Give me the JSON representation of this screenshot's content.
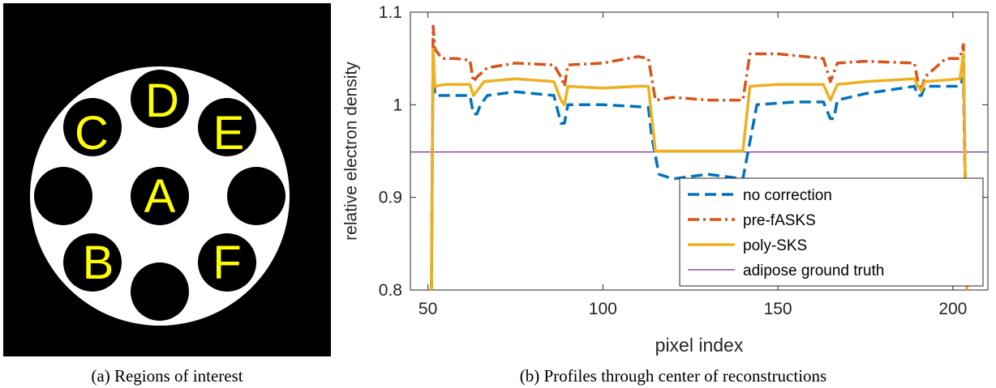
{
  "panel_a": {
    "caption": "(a) Regions of interest",
    "labels": {
      "A": "A",
      "B": "B",
      "C": "C",
      "D": "D",
      "E": "E",
      "F": "F"
    },
    "colors": {
      "background": "#000000",
      "phantom": "#ffffff",
      "insert": "#000000",
      "label": "#ffff00"
    }
  },
  "panel_b": {
    "caption": "(b) Profiles through center of reconstructions"
  },
  "chart_data": {
    "type": "line",
    "title": "",
    "xlabel": "pixel index",
    "ylabel": "relative electron density",
    "xlim": [
      45,
      210
    ],
    "ylim": [
      0.8,
      1.1
    ],
    "xticks": [
      50,
      100,
      150,
      200
    ],
    "yticks": [
      0.8,
      0.9,
      1,
      1.1
    ],
    "ytick_labels": [
      "0.8",
      "0.9",
      "1",
      "1.1"
    ],
    "grid": false,
    "legend_position": "bottom-right",
    "series": [
      {
        "name": "no correction",
        "color": "#0072BD",
        "style": "dashed",
        "points": [
          [
            51,
            0.8
          ],
          [
            51.5,
            1.05
          ],
          [
            52,
            1.01
          ],
          [
            60,
            1.01
          ],
          [
            62,
            1.01
          ],
          [
            63,
            0.99
          ],
          [
            64,
            0.99
          ],
          [
            65,
            1.0
          ],
          [
            67,
            1.01
          ],
          [
            75,
            1.014
          ],
          [
            86,
            1.01
          ],
          [
            88,
            0.98
          ],
          [
            89,
            0.98
          ],
          [
            90,
            1.0
          ],
          [
            100,
            1.0
          ],
          [
            110,
            0.998
          ],
          [
            113,
            0.997
          ],
          [
            114,
            0.965
          ],
          [
            116,
            0.925
          ],
          [
            120,
            0.92
          ],
          [
            130,
            0.925
          ],
          [
            140,
            0.92
          ],
          [
            142,
            0.96
          ],
          [
            144,
            1.0
          ],
          [
            155,
            1.003
          ],
          [
            163,
            1.003
          ],
          [
            165,
            0.985
          ],
          [
            166,
            0.985
          ],
          [
            167,
            1.005
          ],
          [
            175,
            1.012
          ],
          [
            189,
            1.02
          ],
          [
            190,
            1.01
          ],
          [
            191,
            1.01
          ],
          [
            192,
            1.02
          ],
          [
            202,
            1.02
          ],
          [
            203,
            1.03
          ],
          [
            204,
            0.8
          ]
        ]
      },
      {
        "name": "pre-fASKS",
        "color": "#D95319",
        "style": "dashdot",
        "points": [
          [
            51,
            0.8
          ],
          [
            51.5,
            1.085
          ],
          [
            52,
            1.06
          ],
          [
            54,
            1.05
          ],
          [
            58,
            1.05
          ],
          [
            62,
            1.048
          ],
          [
            63,
            1.025
          ],
          [
            64,
            1.03
          ],
          [
            67,
            1.04
          ],
          [
            75,
            1.045
          ],
          [
            86,
            1.043
          ],
          [
            88,
            1.03
          ],
          [
            89,
            1.02
          ],
          [
            90,
            1.043
          ],
          [
            100,
            1.045
          ],
          [
            110,
            1.052
          ],
          [
            113,
            1.05
          ],
          [
            115,
            1.005
          ],
          [
            120,
            1.008
          ],
          [
            130,
            1.005
          ],
          [
            140,
            1.005
          ],
          [
            142,
            1.055
          ],
          [
            150,
            1.055
          ],
          [
            163,
            1.05
          ],
          [
            165,
            1.025
          ],
          [
            167,
            1.045
          ],
          [
            175,
            1.047
          ],
          [
            189,
            1.045
          ],
          [
            190,
            1.025
          ],
          [
            191,
            1.015
          ],
          [
            192,
            1.03
          ],
          [
            198,
            1.05
          ],
          [
            202,
            1.05
          ],
          [
            203,
            1.065
          ],
          [
            204,
            0.8
          ]
        ]
      },
      {
        "name": "poly-SKS",
        "color": "#EDB120",
        "style": "solid",
        "points": [
          [
            51,
            0.8
          ],
          [
            51.5,
            1.06
          ],
          [
            52,
            1.02
          ],
          [
            55,
            1.022
          ],
          [
            62,
            1.022
          ],
          [
            63,
            1.01
          ],
          [
            64,
            1.015
          ],
          [
            66,
            1.025
          ],
          [
            75,
            1.028
          ],
          [
            86,
            1.025
          ],
          [
            88,
            1.005
          ],
          [
            89,
            1.0
          ],
          [
            90,
            1.02
          ],
          [
            100,
            1.018
          ],
          [
            110,
            1.02
          ],
          [
            113,
            1.02
          ],
          [
            115,
            0.95
          ],
          [
            120,
            0.95
          ],
          [
            130,
            0.95
          ],
          [
            140,
            0.95
          ],
          [
            142,
            1.02
          ],
          [
            150,
            1.022
          ],
          [
            163,
            1.022
          ],
          [
            165,
            1.005
          ],
          [
            167,
            1.022
          ],
          [
            175,
            1.025
          ],
          [
            189,
            1.028
          ],
          [
            190,
            1.02
          ],
          [
            191,
            1.015
          ],
          [
            192,
            1.025
          ],
          [
            202,
            1.028
          ],
          [
            203,
            1.055
          ],
          [
            204,
            0.8
          ]
        ]
      },
      {
        "name": "adipose ground truth",
        "color": "#7E2F8E",
        "style": "thin",
        "points": [
          [
            45,
            0.949
          ],
          [
            210,
            0.949
          ]
        ]
      }
    ]
  }
}
